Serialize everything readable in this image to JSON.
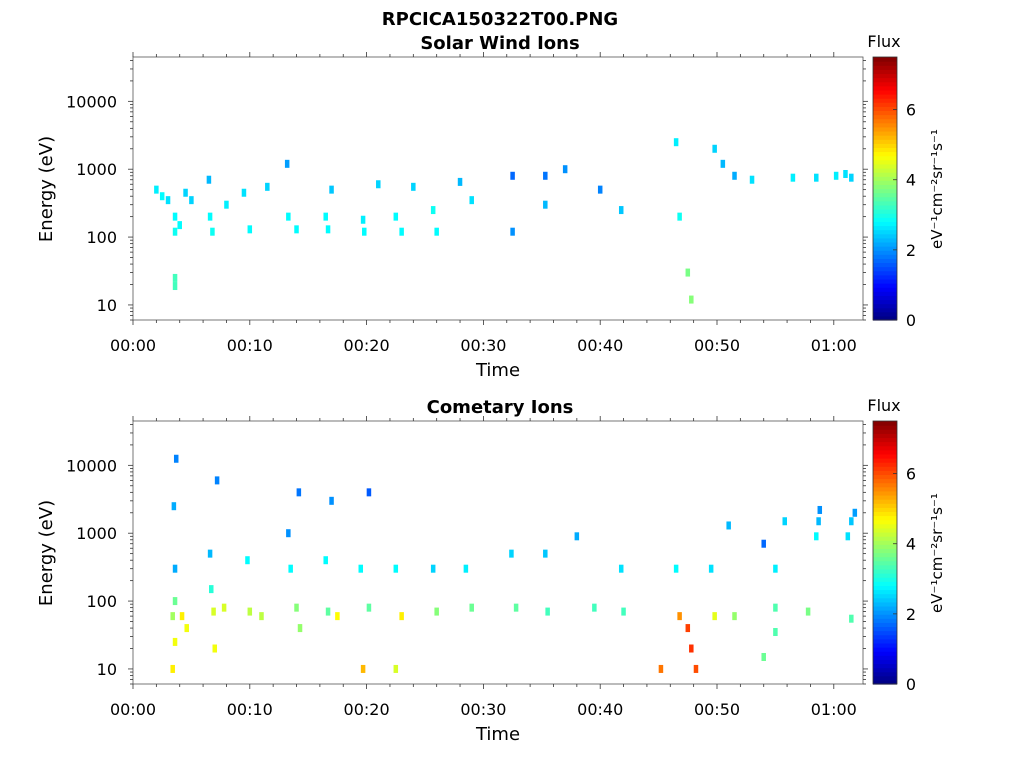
{
  "figure_title": "RPCICA150322T00.PNG",
  "x_axis": {
    "label": "Time",
    "ticks": [
      "00:00",
      "00:10",
      "00:20",
      "00:30",
      "00:40",
      "00:50",
      "01:00"
    ],
    "range_minutes": [
      0,
      62.5
    ]
  },
  "y_axis": {
    "label": "Energy (eV)",
    "scale": "log",
    "ticks": [
      "10",
      "100",
      "1000",
      "10000"
    ],
    "range_ev": [
      6,
      45000
    ]
  },
  "colorbar": {
    "label": "Flux",
    "unit": "eV⁻¹cm⁻²sr⁻¹s⁻¹",
    "ticks": [
      "0",
      "2",
      "4",
      "6"
    ],
    "range": [
      0,
      7.5
    ],
    "colormap": "jet"
  },
  "panels": [
    {
      "title": "Solar Wind Ions"
    },
    {
      "title": "Cometary Ions"
    }
  ],
  "chart_data": [
    {
      "type": "heatmap",
      "title": "Solar Wind Ions",
      "xlabel": "Time",
      "ylabel": "Energy (eV)",
      "y_scale": "log",
      "colorbar_label": "Flux",
      "colorbar_range": [
        0,
        7.5
      ],
      "cells_time_energy_flux": [
        [
          2.0,
          500,
          2.7
        ],
        [
          2.5,
          400,
          2.8
        ],
        [
          3.0,
          350,
          2.6
        ],
        [
          3.6,
          200,
          2.8
        ],
        [
          3.6,
          120,
          2.9
        ],
        [
          3.6,
          25,
          3.3
        ],
        [
          3.6,
          19,
          3.3
        ],
        [
          4.0,
          150,
          2.8
        ],
        [
          4.5,
          450,
          2.5
        ],
        [
          5.0,
          350,
          2.5
        ],
        [
          6.5,
          700,
          2.3
        ],
        [
          6.6,
          200,
          2.8
        ],
        [
          6.8,
          120,
          2.9
        ],
        [
          8.0,
          300,
          2.7
        ],
        [
          9.5,
          450,
          2.6
        ],
        [
          10.0,
          130,
          2.8
        ],
        [
          11.5,
          550,
          2.5
        ],
        [
          13.2,
          1200,
          2.1
        ],
        [
          13.3,
          200,
          2.8
        ],
        [
          14.0,
          130,
          2.8
        ],
        [
          16.5,
          200,
          2.8
        ],
        [
          16.7,
          130,
          2.8
        ],
        [
          17.0,
          500,
          2.4
        ],
        [
          19.7,
          180,
          2.7
        ],
        [
          19.8,
          120,
          2.8
        ],
        [
          21.0,
          600,
          2.5
        ],
        [
          22.5,
          200,
          2.8
        ],
        [
          23.0,
          120,
          2.8
        ],
        [
          24.0,
          550,
          2.5
        ],
        [
          25.7,
          250,
          2.9
        ],
        [
          26.0,
          120,
          2.8
        ],
        [
          28.0,
          650,
          2.3
        ],
        [
          29.0,
          350,
          2.6
        ],
        [
          32.5,
          800,
          1.7
        ],
        [
          32.5,
          120,
          2.0
        ],
        [
          35.3,
          800,
          1.8
        ],
        [
          35.3,
          300,
          2.3
        ],
        [
          37.0,
          1000,
          2.0
        ],
        [
          40.0,
          500,
          1.9
        ],
        [
          41.8,
          250,
          2.4
        ],
        [
          46.5,
          2500,
          2.7
        ],
        [
          46.8,
          200,
          2.9
        ],
        [
          47.5,
          30,
          3.7
        ],
        [
          47.8,
          12,
          3.8
        ],
        [
          49.8,
          2000,
          2.5
        ],
        [
          50.5,
          1200,
          2.3
        ],
        [
          51.5,
          800,
          2.2
        ],
        [
          53.0,
          700,
          2.6
        ],
        [
          56.5,
          750,
          2.7
        ],
        [
          58.5,
          750,
          2.6
        ],
        [
          60.2,
          800,
          2.7
        ],
        [
          61.0,
          850,
          2.6
        ],
        [
          61.5,
          750,
          2.5
        ]
      ]
    },
    {
      "type": "heatmap",
      "title": "Cometary Ions",
      "xlabel": "Time",
      "ylabel": "Energy (eV)",
      "y_scale": "log",
      "colorbar_label": "Flux",
      "colorbar_range": [
        0,
        7.5
      ],
      "cells_time_energy_flux": [
        [
          3.7,
          12500,
          1.9
        ],
        [
          3.5,
          2500,
          2.2
        ],
        [
          3.6,
          300,
          2.2
        ],
        [
          3.6,
          100,
          3.6
        ],
        [
          3.4,
          60,
          4.0
        ],
        [
          3.6,
          25,
          4.6
        ],
        [
          3.4,
          10,
          4.8
        ],
        [
          4.2,
          60,
          4.8
        ],
        [
          4.6,
          40,
          4.6
        ],
        [
          6.6,
          500,
          2.3
        ],
        [
          6.7,
          150,
          3.1
        ],
        [
          6.9,
          70,
          4.4
        ],
        [
          7.0,
          20,
          4.6
        ],
        [
          7.2,
          6000,
          1.9
        ],
        [
          7.8,
          80,
          4.4
        ],
        [
          9.8,
          400,
          2.8
        ],
        [
          10.0,
          70,
          4.2
        ],
        [
          11.0,
          60,
          4.2
        ],
        [
          13.3,
          1000,
          2.0
        ],
        [
          13.5,
          300,
          2.8
        ],
        [
          14.0,
          80,
          3.8
        ],
        [
          14.2,
          4000,
          1.8
        ],
        [
          14.3,
          40,
          3.9
        ],
        [
          16.5,
          400,
          2.8
        ],
        [
          16.7,
          70,
          3.5
        ],
        [
          17.5,
          60,
          4.7
        ],
        [
          17.0,
          3000,
          2.0
        ],
        [
          19.5,
          300,
          2.8
        ],
        [
          20.2,
          80,
          3.5
        ],
        [
          20.2,
          4000,
          1.6
        ],
        [
          19.7,
          10,
          5.2
        ],
        [
          22.5,
          300,
          2.8
        ],
        [
          23.0,
          60,
          4.8
        ],
        [
          22.5,
          10,
          4.4
        ],
        [
          25.7,
          300,
          2.5
        ],
        [
          26.0,
          70,
          3.8
        ],
        [
          28.5,
          300,
          2.7
        ],
        [
          29.0,
          80,
          3.6
        ],
        [
          32.4,
          500,
          2.5
        ],
        [
          32.8,
          80,
          3.5
        ],
        [
          35.3,
          500,
          2.4
        ],
        [
          35.5,
          70,
          3.3
        ],
        [
          38.0,
          900,
          2.2
        ],
        [
          39.5,
          80,
          3.3
        ],
        [
          41.8,
          300,
          2.6
        ],
        [
          42.0,
          70,
          3.3
        ],
        [
          45.2,
          10,
          5.7
        ],
        [
          46.5,
          300,
          2.8
        ],
        [
          46.8,
          60,
          5.5
        ],
        [
          47.5,
          40,
          6.1
        ],
        [
          47.8,
          20,
          6.2
        ],
        [
          48.2,
          10,
          6.0
        ],
        [
          49.5,
          300,
          2.6
        ],
        [
          49.8,
          60,
          4.5
        ],
        [
          51.0,
          1300,
          2.3
        ],
        [
          51.5,
          60,
          3.9
        ],
        [
          54.0,
          700,
          1.7
        ],
        [
          54.0,
          15,
          3.6
        ],
        [
          55.0,
          300,
          2.7
        ],
        [
          55.0,
          80,
          3.4
        ],
        [
          55.0,
          35,
          3.4
        ],
        [
          55.8,
          1500,
          2.5
        ],
        [
          57.8,
          70,
          3.7
        ],
        [
          58.5,
          900,
          2.8
        ],
        [
          58.7,
          1500,
          2.3
        ],
        [
          58.8,
          2200,
          2.0
        ],
        [
          61.2,
          900,
          2.6
        ],
        [
          61.5,
          1500,
          2.4
        ],
        [
          61.8,
          2000,
          2.1
        ],
        [
          61.5,
          55,
          3.4
        ]
      ]
    }
  ]
}
